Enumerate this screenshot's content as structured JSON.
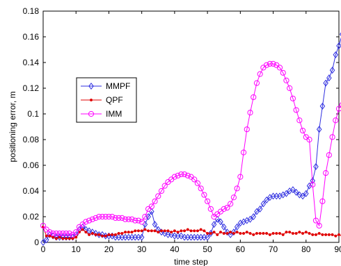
{
  "chart_data": {
    "type": "line",
    "title": "",
    "xlabel": "time step",
    "ylabel": "positioning error, m",
    "xlim": [
      0,
      90
    ],
    "ylim": [
      0,
      0.18
    ],
    "xticks": [
      0,
      10,
      20,
      30,
      40,
      50,
      60,
      70,
      80,
      90
    ],
    "yticks": [
      0,
      0.02,
      0.04,
      0.06,
      0.08,
      0.1,
      0.12,
      0.14,
      0.16,
      0.18
    ],
    "ytick_labels": [
      "0",
      "0.02",
      "0.04",
      "0.06",
      "0.08",
      "0.1",
      "0.12",
      "0.14",
      "0.16",
      "0.18"
    ],
    "grid": false,
    "legend_position": "center-left",
    "series": [
      {
        "name": "MMPF",
        "color": "#2f2fe0",
        "marker": "diamond",
        "values": [
          0.0,
          0.002,
          0.006,
          0.005,
          0.004,
          0.004,
          0.004,
          0.004,
          0.004,
          0.004,
          0.006,
          0.01,
          0.012,
          0.01,
          0.009,
          0.008,
          0.007,
          0.006,
          0.006,
          0.005,
          0.005,
          0.005,
          0.004,
          0.004,
          0.004,
          0.004,
          0.004,
          0.004,
          0.004,
          0.004,
          0.004,
          0.014,
          0.02,
          0.024,
          0.014,
          0.01,
          0.008,
          0.007,
          0.006,
          0.006,
          0.005,
          0.005,
          0.005,
          0.004,
          0.004,
          0.004,
          0.004,
          0.004,
          0.004,
          0.004,
          0.004,
          0.007,
          0.014,
          0.018,
          0.016,
          0.012,
          0.008,
          0.006,
          0.008,
          0.012,
          0.015,
          0.016,
          0.017,
          0.018,
          0.02,
          0.024,
          0.026,
          0.03,
          0.033,
          0.035,
          0.036,
          0.036,
          0.036,
          0.037,
          0.038,
          0.04,
          0.041,
          0.039,
          0.037,
          0.036,
          0.038,
          0.044,
          0.048,
          0.059,
          0.088,
          0.106,
          0.124,
          0.128,
          0.134,
          0.146,
          0.153,
          0.162,
          0.162
        ]
      },
      {
        "name": "QPF",
        "color": "#e00000",
        "marker": "dot",
        "values": [
          0.012,
          0.005,
          0.005,
          0.004,
          0.003,
          0.004,
          0.003,
          0.003,
          0.003,
          0.003,
          0.004,
          0.008,
          0.01,
          0.008,
          0.006,
          0.007,
          0.006,
          0.006,
          0.005,
          0.005,
          0.006,
          0.006,
          0.006,
          0.007,
          0.007,
          0.008,
          0.008,
          0.008,
          0.009,
          0.009,
          0.009,
          0.01,
          0.009,
          0.009,
          0.009,
          0.008,
          0.009,
          0.009,
          0.009,
          0.008,
          0.009,
          0.008,
          0.009,
          0.009,
          0.01,
          0.009,
          0.009,
          0.009,
          0.01,
          0.009,
          0.007,
          0.007,
          0.008,
          0.006,
          0.008,
          0.007,
          0.007,
          0.008,
          0.007,
          0.008,
          0.007,
          0.007,
          0.008,
          0.007,
          0.006,
          0.007,
          0.007,
          0.007,
          0.007,
          0.006,
          0.007,
          0.007,
          0.007,
          0.006,
          0.008,
          0.008,
          0.007,
          0.007,
          0.008,
          0.007,
          0.008,
          0.007,
          0.006,
          0.006,
          0.007,
          0.006,
          0.006,
          0.006,
          0.006,
          0.005,
          0.006,
          0.005
        ]
      },
      {
        "name": "IMM",
        "color": "#ff00ff",
        "marker": "circle",
        "values": [
          0.013,
          0.01,
          0.008,
          0.007,
          0.007,
          0.007,
          0.007,
          0.007,
          0.007,
          0.006,
          0.008,
          0.012,
          0.014,
          0.016,
          0.017,
          0.018,
          0.019,
          0.02,
          0.02,
          0.02,
          0.02,
          0.02,
          0.019,
          0.019,
          0.019,
          0.018,
          0.018,
          0.018,
          0.017,
          0.017,
          0.016,
          0.02,
          0.026,
          0.028,
          0.032,
          0.036,
          0.04,
          0.044,
          0.047,
          0.049,
          0.051,
          0.052,
          0.053,
          0.053,
          0.052,
          0.051,
          0.049,
          0.046,
          0.042,
          0.037,
          0.032,
          0.026,
          0.02,
          0.022,
          0.024,
          0.026,
          0.027,
          0.03,
          0.035,
          0.042,
          0.051,
          0.07,
          0.088,
          0.101,
          0.113,
          0.124,
          0.131,
          0.136,
          0.138,
          0.139,
          0.139,
          0.138,
          0.136,
          0.132,
          0.126,
          0.12,
          0.112,
          0.103,
          0.095,
          0.087,
          0.082,
          0.08,
          0.045,
          0.017,
          0.013,
          0.032,
          0.054,
          0.068,
          0.082,
          0.095,
          0.104,
          0.107
        ]
      }
    ]
  }
}
